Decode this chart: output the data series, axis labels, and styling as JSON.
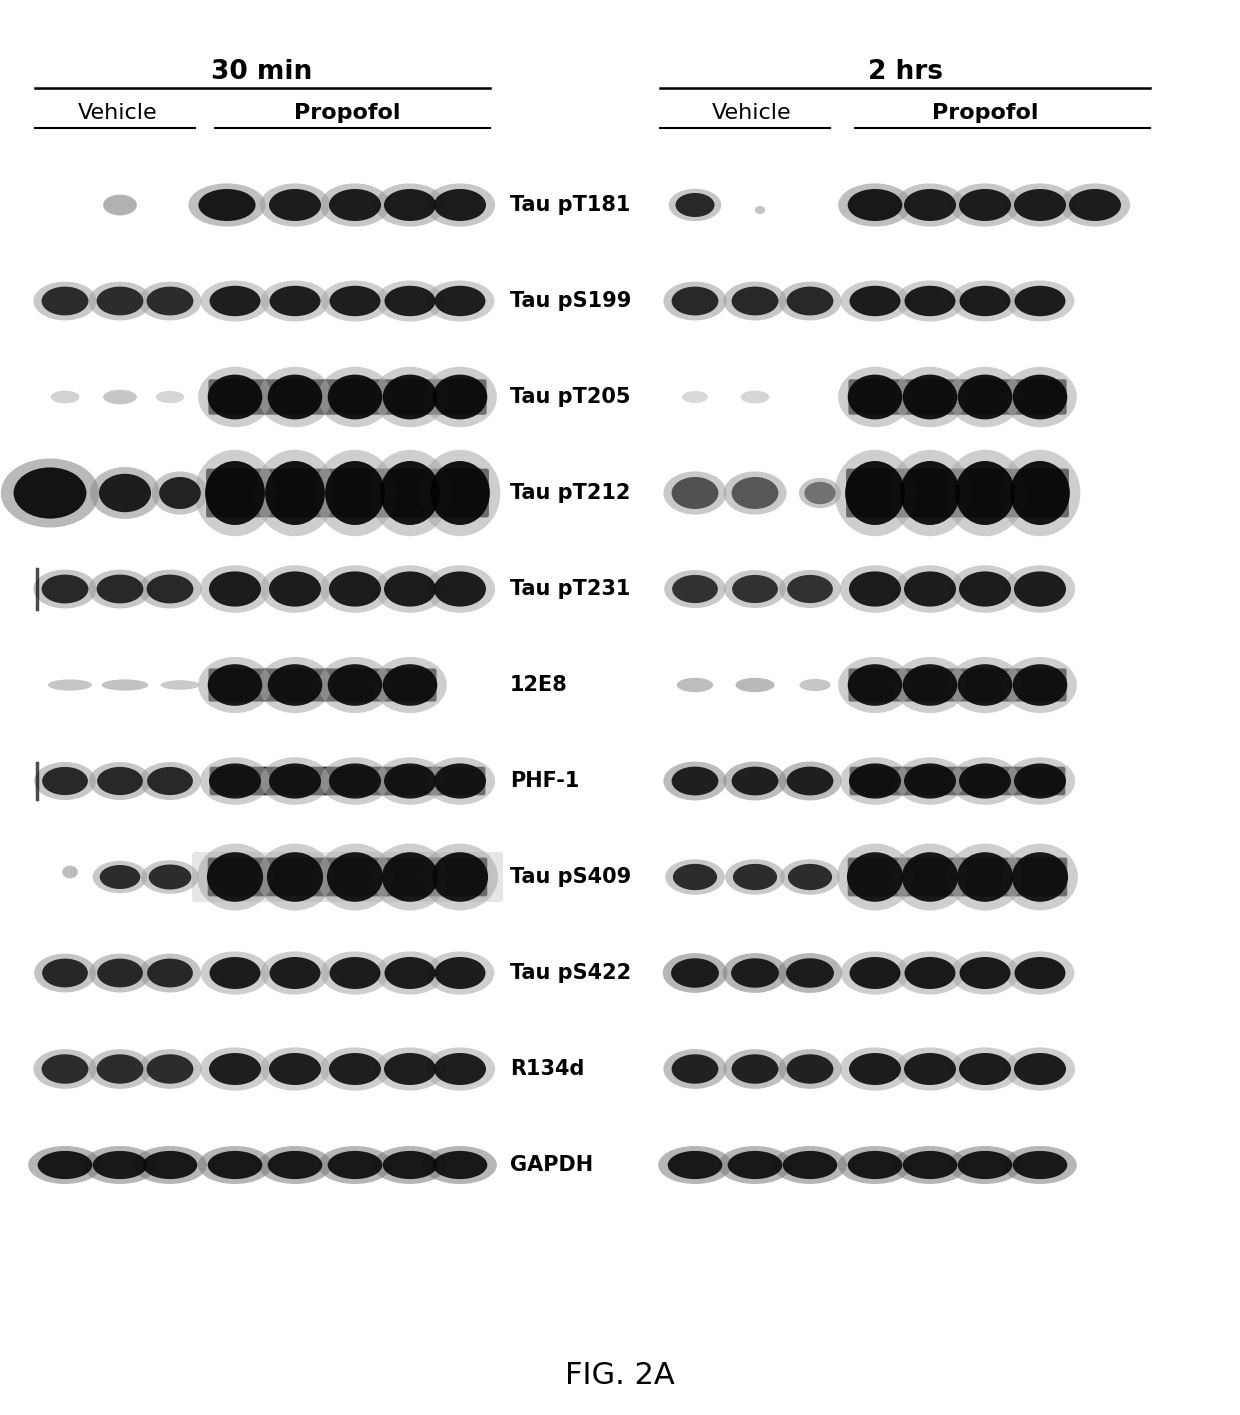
{
  "title": "FIG. 2A",
  "group1_title": "30 min",
  "group2_title": "2 hrs",
  "subgroup1": "Vehicle",
  "subgroup2": "Propofol",
  "row_labels": [
    "Tau pT181",
    "Tau pS199",
    "Tau pT205",
    "Tau pT212",
    "Tau pT231",
    "12E8",
    "PHF-1",
    "Tau pS409",
    "Tau pS422",
    "R134d",
    "GAPDH"
  ],
  "background_color": "#ffffff",
  "fig_width": 12.4,
  "fig_height": 14.15
}
